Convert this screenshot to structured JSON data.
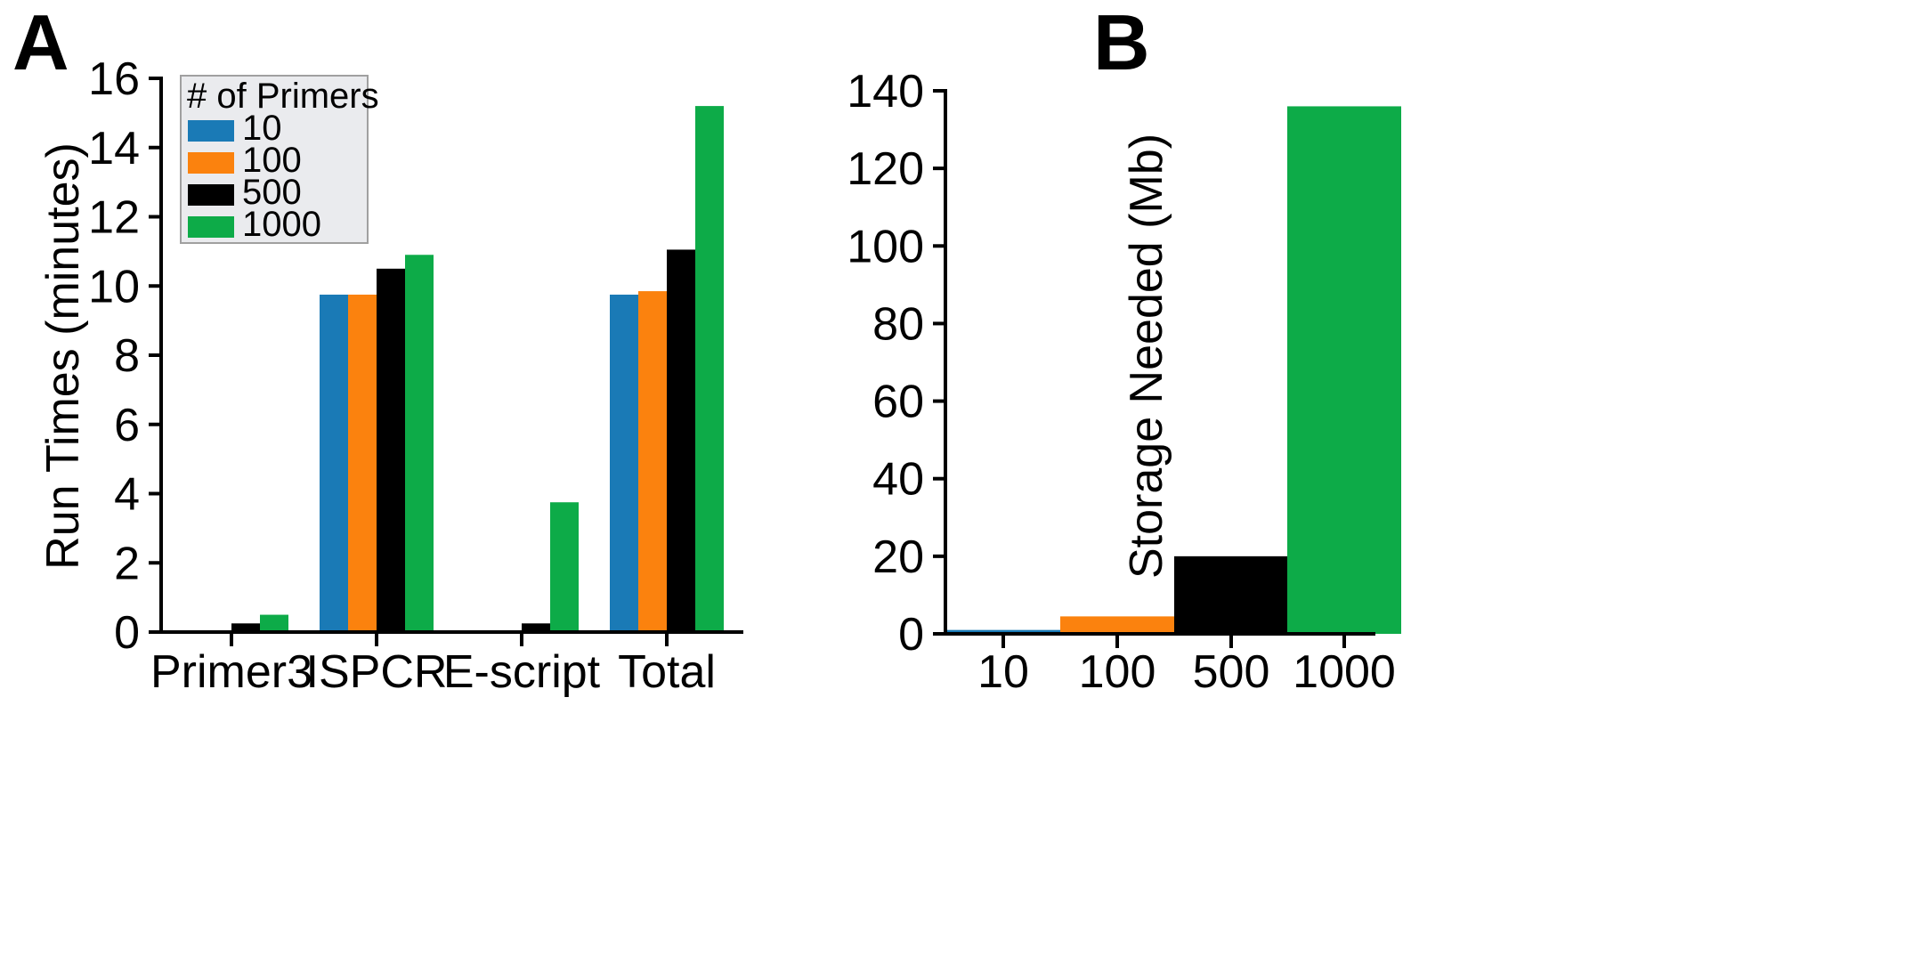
{
  "chart_data": [
    {
      "panel": "A",
      "type": "bar",
      "title": "",
      "xlabel": "",
      "ylabel": "Run Times (minutes)",
      "ylim": [
        0,
        16
      ],
      "yticks": [
        "0",
        "2",
        "4",
        "6",
        "8",
        "10",
        "12",
        "14",
        "16"
      ],
      "categories": [
        "Primer3",
        "ISPCR",
        "E-script",
        "Total"
      ],
      "legend_title": "# of Primers",
      "legend_position": "top-left",
      "series": [
        {
          "name": "10",
          "color": "#1a7ab6",
          "values": [
            0.02,
            9.75,
            0.02,
            9.75
          ]
        },
        {
          "name": "100",
          "color": "#fb820e",
          "values": [
            0.05,
            9.75,
            0.02,
            9.85
          ]
        },
        {
          "name": "500",
          "color": "#000000",
          "values": [
            0.25,
            10.5,
            0.25,
            11.05
          ]
        },
        {
          "name": "1000",
          "color": "#0dab48",
          "values": [
            0.5,
            10.9,
            3.75,
            15.2
          ]
        }
      ]
    },
    {
      "panel": "B",
      "type": "bar",
      "title": "",
      "xlabel": "",
      "ylabel": "Storage Needed (Mb)",
      "ylim": [
        0,
        140
      ],
      "yticks": [
        "0",
        "20",
        "40",
        "60",
        "80",
        "100",
        "120",
        "140"
      ],
      "categories": [
        "10",
        "100",
        "500",
        "1000"
      ],
      "values": [
        1,
        4.5,
        20,
        136
      ],
      "colors": [
        "#1a7ab6",
        "#fb820e",
        "#000000",
        "#0dab48"
      ]
    }
  ]
}
